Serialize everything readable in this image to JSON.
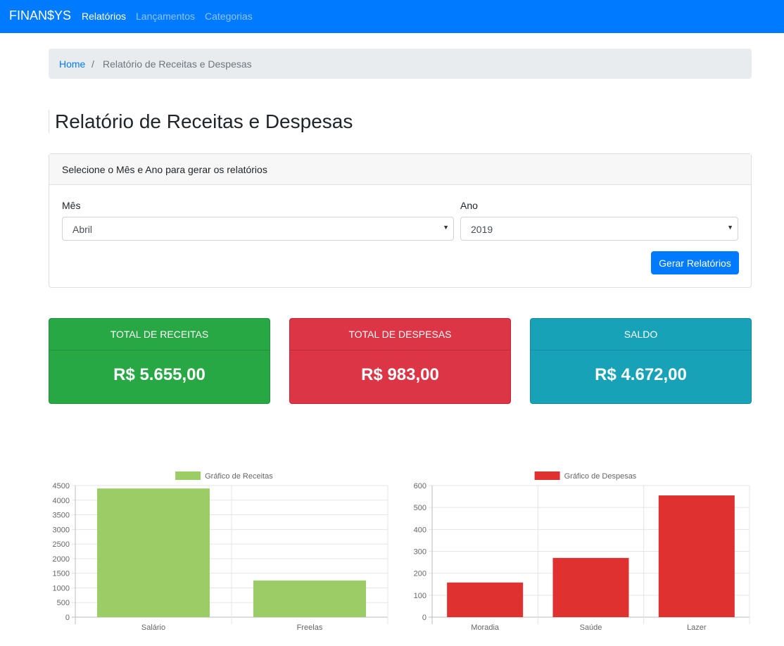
{
  "navbar": {
    "brand": "FINAN$YS",
    "links": [
      {
        "label": "Relatórios",
        "active": true
      },
      {
        "label": "Lançamentos",
        "active": false
      },
      {
        "label": "Categorias",
        "active": false
      }
    ]
  },
  "breadcrumb": {
    "home": "Home",
    "separator": "/",
    "current": "Relatório de Receitas e Despesas"
  },
  "page_title": "Relatório de Receitas e Despesas",
  "filter": {
    "header": "Selecione o Mês e Ano para gerar os relatórios",
    "month_label": "Mês",
    "month_value": "Abril",
    "year_label": "Ano",
    "year_value": "2019",
    "submit_label": "Gerar Relatórios"
  },
  "summary": {
    "receitas": {
      "title": "TOTAL DE RECEITAS",
      "value": "R$ 5.655,00"
    },
    "despesas": {
      "title": "TOTAL DE DESPESAS",
      "value": "R$ 983,00"
    },
    "saldo": {
      "title": "SALDO",
      "value": "R$ 4.672,00"
    }
  },
  "colors": {
    "primary": "#007bff",
    "success": "#28a745",
    "danger": "#dc3545",
    "info": "#17a2b8",
    "bar_receitas": "#9ccc65",
    "bar_despesas": "#e03131"
  },
  "chart_data": [
    {
      "type": "bar",
      "legend": "Gráfico de Receitas",
      "categories": [
        "Salário",
        "Freelas"
      ],
      "values": [
        4400,
        1255
      ],
      "ylim": [
        0,
        4500
      ],
      "yticks": [
        0,
        500,
        1000,
        1500,
        2000,
        2500,
        3000,
        3500,
        4000,
        4500
      ],
      "color": "#9ccc65"
    },
    {
      "type": "bar",
      "legend": "Gráfico de Despesas",
      "categories": [
        "Moradia",
        "Saúde",
        "Lazer"
      ],
      "values": [
        158,
        270,
        555
      ],
      "ylim": [
        0,
        600
      ],
      "yticks": [
        0,
        100,
        200,
        300,
        400,
        500,
        600
      ],
      "color": "#e03131"
    }
  ]
}
